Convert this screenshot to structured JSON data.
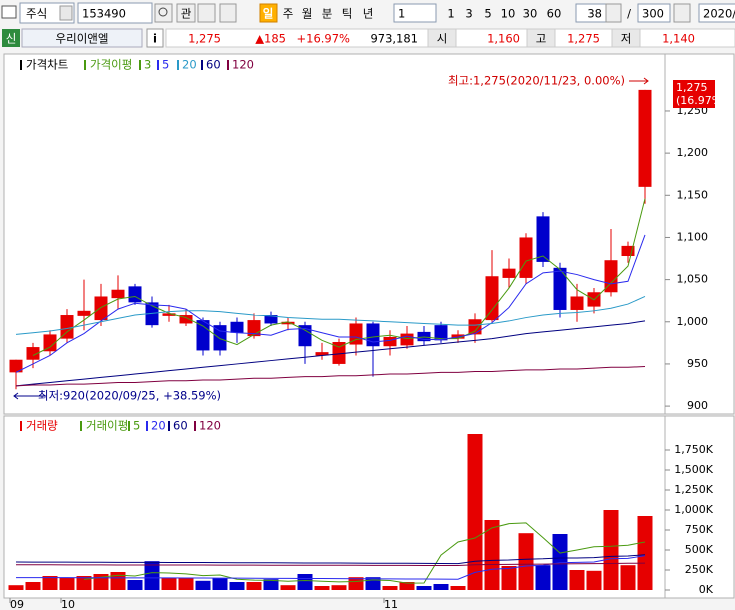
{
  "toolbar": {
    "market": "주식",
    "code": "153490",
    "watch": "관",
    "periods": [
      "일",
      "주",
      "월",
      "분",
      "틱",
      "년"
    ],
    "unit": "1",
    "units": [
      "1",
      "3",
      "5",
      "10",
      "30",
      "60"
    ],
    "count": "38",
    "separator": "/",
    "max_count": "300",
    "date": "2020/"
  },
  "quote": {
    "badge": "신",
    "name": "우리이앤엘",
    "info": "i",
    "price": "1,275",
    "change": "▲185",
    "change_rate": "+16.97%",
    "volume": "973,181",
    "open_label": "시",
    "open": "1,160",
    "high_label": "고",
    "high": "1,275",
    "low_label": "저",
    "low": "1,140"
  },
  "chart_data": [
    {
      "type": "candlestick",
      "title": "가격차트",
      "ma_title": "가격이평",
      "up_color": "#e60000",
      "down_color": "#0000cc",
      "open": [
        940,
        955,
        965,
        980,
        1007,
        1002,
        1028,
        1042,
        1023,
        1007,
        998,
        1002,
        996,
        1000,
        983,
        1008,
        997,
        996,
        960,
        950,
        973,
        998,
        971,
        972,
        988,
        996,
        980,
        985,
        1002,
        1052,
        1052,
        1125,
        1064,
        1014,
        1018,
        1035,
        1078,
        1160
      ],
      "high": [
        955,
        975,
        990,
        1015,
        1050,
        1045,
        1055,
        1045,
        1030,
        1020,
        1015,
        1005,
        1000,
        1005,
        1010,
        1012,
        1005,
        1000,
        975,
        980,
        1005,
        1000,
        990,
        995,
        995,
        1000,
        990,
        1010,
        1085,
        1075,
        1105,
        1130,
        1070,
        1045,
        1040,
        1110,
        1095,
        1275
      ],
      "low": [
        920,
        945,
        960,
        975,
        990,
        995,
        1015,
        1020,
        993,
        1000,
        995,
        960,
        960,
        975,
        980,
        995,
        990,
        950,
        955,
        948,
        960,
        935,
        960,
        968,
        972,
        975,
        975,
        975,
        1000,
        1040,
        1045,
        1065,
        1005,
        1000,
        1010,
        1030,
        1070,
        1140
      ],
      "close": [
        955,
        970,
        985,
        1008,
        1013,
        1030,
        1038,
        1023,
        996,
        1010,
        1008,
        966,
        966,
        987,
        1002,
        998,
        1000,
        971,
        964,
        976,
        998,
        971,
        982,
        986,
        977,
        978,
        985,
        1003,
        1054,
        1063,
        1100,
        1071,
        1014,
        1030,
        1035,
        1073,
        1090,
        1275
      ],
      "series": [
        {
          "name": "3",
          "color": "#4a9a10",
          "values": [
            null,
            960,
            970,
            988,
            1002,
            1017,
            1027,
            1030,
            1019,
            1010,
            1005,
            995,
            980,
            973,
            985,
            996,
            1000,
            990,
            978,
            970,
            979,
            982,
            984,
            980,
            982,
            980,
            980,
            989,
            1014,
            1040,
            1072,
            1078,
            1062,
            1038,
            1026,
            1046,
            1066,
            1146
          ]
        },
        {
          "name": "5",
          "color": "#2a2aee",
          "values": [
            940,
            950,
            960,
            975,
            986,
            1001,
            1015,
            1022,
            1020,
            1019,
            1015,
            1001,
            989,
            987,
            986,
            984,
            991,
            992,
            987,
            982,
            982,
            976,
            978,
            983,
            979,
            979,
            982,
            986,
            999,
            1017,
            1045,
            1058,
            1060,
            1056,
            1050,
            1045,
            1048,
            1103
          ]
        },
        {
          "name": "20",
          "color": "#2a9ac8",
          "values": [
            985,
            987,
            989,
            992,
            996,
            1000,
            1004,
            1008,
            1010,
            1012,
            1013,
            1013,
            1012,
            1010,
            1008,
            1007,
            1005,
            1004,
            1003,
            1003,
            1002,
            1001,
            1000,
            999,
            998,
            997,
            996,
            996,
            998,
            1001,
            1005,
            1008,
            1010,
            1011,
            1013,
            1016,
            1021,
            1030
          ]
        },
        {
          "name": "60",
          "color": "#000080",
          "values": [
            924,
            926,
            928,
            930,
            932,
            934,
            936,
            938,
            940,
            942,
            944,
            946,
            948,
            950,
            952,
            954,
            956,
            958,
            960,
            962,
            964,
            966,
            968,
            970,
            972,
            974,
            976,
            978,
            980,
            983,
            986,
            988,
            990,
            992,
            994,
            996,
            998,
            1001
          ]
        },
        {
          "name": "120",
          "color": "#800040",
          "values": [
            924,
            925,
            925,
            926,
            926,
            927,
            928,
            928,
            929,
            930,
            930,
            931,
            931,
            932,
            933,
            933,
            934,
            935,
            935,
            936,
            936,
            937,
            938,
            938,
            939,
            940,
            940,
            941,
            941,
            942,
            943,
            943,
            944,
            944,
            945,
            946,
            946,
            947
          ]
        }
      ],
      "ylim": [
        893,
        1314
      ],
      "yticks": [
        900,
        950,
        {
          "value": 1000,
          "label": "1,000"
        },
        {
          "value": 1050,
          "label": "1,050"
        },
        {
          "value": 1100,
          "label": "1,100"
        },
        {
          "value": 1150,
          "label": "1,150"
        },
        {
          "value": 1200,
          "label": "1,200"
        },
        {
          "value": 1250,
          "label": "1,250"
        }
      ],
      "annotations": [
        "최고:1,275(2020/11/23, 0.00%)",
        "최저:920(2020/09/25, +38.59%)"
      ],
      "last_value_label": "1,275",
      "last_change_label": "(16.97%)"
    },
    {
      "type": "bar",
      "title": "거래량",
      "ma_title": "거래이평",
      "up_color": "#e60000",
      "down_color": "#0000cc",
      "categories": [
        "09",
        null,
        null,
        "10",
        null,
        null,
        null,
        null,
        null,
        null,
        null,
        null,
        null,
        null,
        null,
        null,
        null,
        null,
        null,
        null,
        null,
        null,
        "11",
        null,
        null,
        null,
        null,
        null,
        null,
        null,
        null,
        null,
        null,
        null,
        null,
        null,
        null,
        null
      ],
      "values": [
        60000,
        100000,
        175000,
        150000,
        175000,
        200000,
        225000,
        125000,
        360000,
        150000,
        150000,
        115000,
        150000,
        100000,
        100000,
        135000,
        60000,
        200000,
        50000,
        60000,
        160000,
        160000,
        50000,
        100000,
        50000,
        75000,
        50000,
        1950000,
        875000,
        300000,
        710000,
        310000,
        700000,
        250000,
        240000,
        1000000,
        310000,
        925000
      ],
      "series": [
        {
          "name": "5",
          "color": "#4a9a10",
          "values": [
            null,
            null,
            null,
            null,
            132000,
            160000,
            185000,
            175000,
            217000,
            212000,
            202000,
            180000,
            187000,
            135000,
            123000,
            120000,
            109000,
            119000,
            109000,
            101000,
            106000,
            126000,
            118000,
            86000,
            87000,
            436000,
            600000,
            650000,
            777000,
            829000,
            839000,
            654000,
            462000,
            500000,
            540000,
            547000,
            560000,
            600000
          ]
        },
        {
          "name": "20",
          "color": "#2a2aee",
          "values": [
            155000,
            155000,
            154000,
            154000,
            153000,
            153000,
            152000,
            152000,
            151000,
            151000,
            150000,
            150000,
            149000,
            148000,
            147000,
            146000,
            145000,
            144000,
            143000,
            142000,
            141000,
            140000,
            139000,
            138000,
            137000,
            136000,
            135000,
            220000,
            260000,
            270000,
            300000,
            310000,
            340000,
            345000,
            350000,
            390000,
            395000,
            430000
          ]
        },
        {
          "name": "60",
          "color": "#000080",
          "values": [
            350000,
            349000,
            349000,
            348000,
            347000,
            347000,
            346000,
            345000,
            345000,
            344000,
            343000,
            343000,
            342000,
            341000,
            340000,
            340000,
            339000,
            338000,
            337000,
            337000,
            336000,
            335000,
            334000,
            334000,
            333000,
            332000,
            330000,
            360000,
            370000,
            375000,
            385000,
            390000,
            400000,
            400000,
            405000,
            420000,
            425000,
            440000
          ]
        },
        {
          "name": "120",
          "color": "#800040",
          "values": [
            315000,
            315000,
            315000,
            314000,
            314000,
            314000,
            313000,
            313000,
            313000,
            312000,
            312000,
            312000,
            311000,
            311000,
            311000,
            310000,
            310000,
            310000,
            309000,
            309000,
            309000,
            308000,
            308000,
            308000,
            307000,
            307000,
            307000,
            315000,
            318000,
            320000,
            322000,
            324000,
            326000,
            328000,
            330000,
            332000,
            334000,
            336000
          ]
        }
      ],
      "ylim": [
        0,
        2125000
      ],
      "yticks": [
        {
          "value": 0,
          "label": "0K"
        },
        {
          "value": 250000,
          "label": "250K"
        },
        {
          "value": 500000,
          "label": "500K"
        },
        {
          "value": 750000,
          "label": "750K"
        },
        {
          "value": 1000000,
          "label": "1,000K"
        },
        {
          "value": 1250000,
          "label": "1,250K"
        },
        {
          "value": 1500000,
          "label": "1,500K"
        },
        {
          "value": 1750000,
          "label": "1,750K"
        }
      ]
    }
  ]
}
